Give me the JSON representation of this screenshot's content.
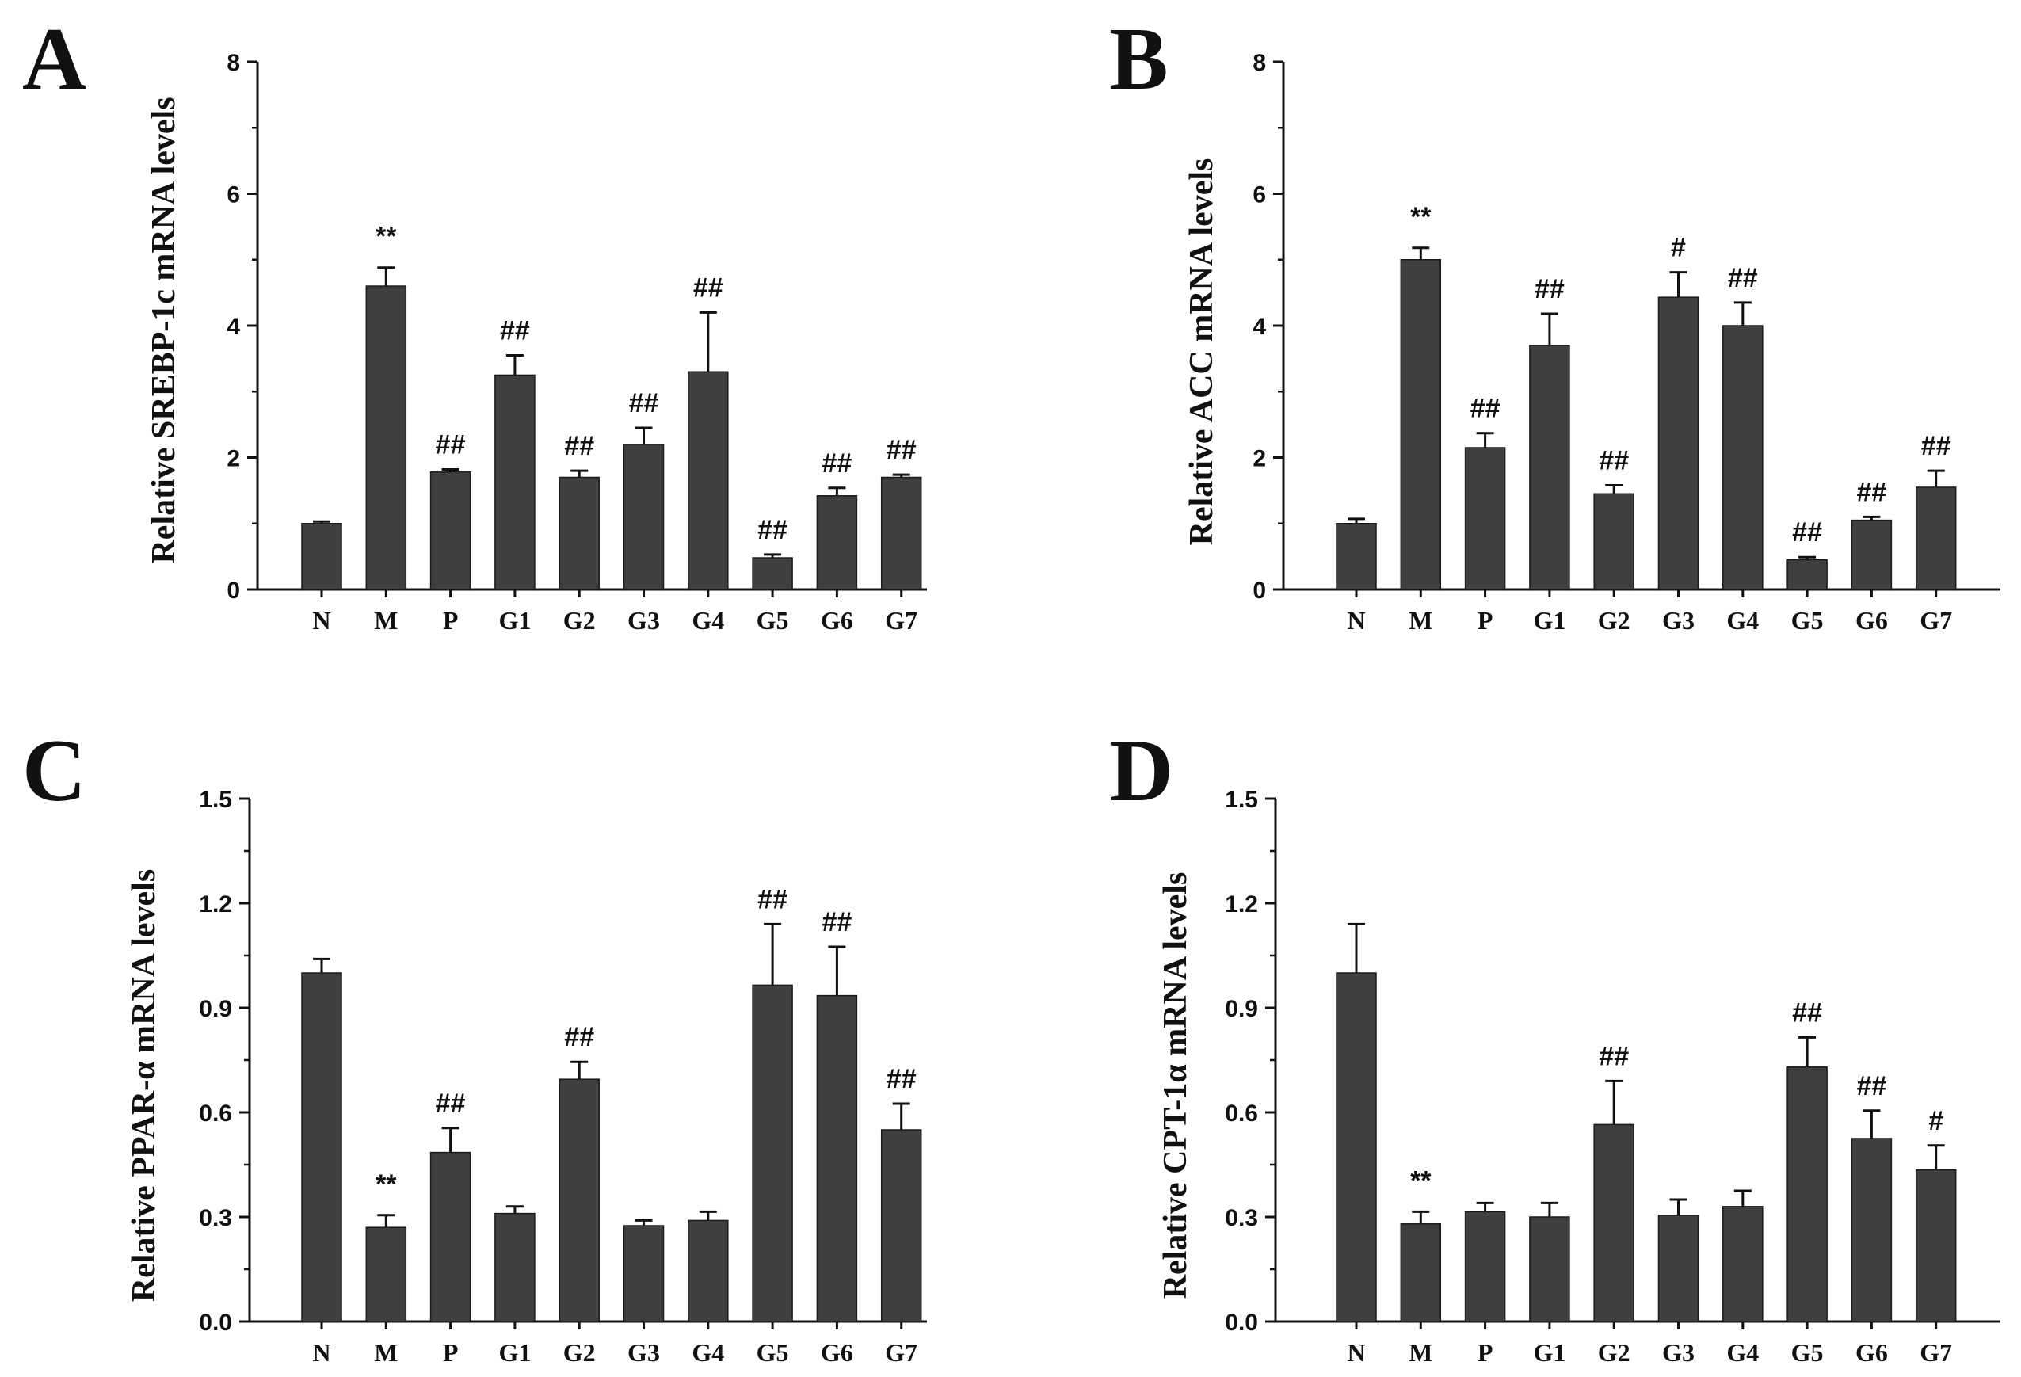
{
  "colors": {
    "bar": "#3f3f3f",
    "axis": "#111111",
    "background": "#ffffff"
  },
  "chart_data": [
    {
      "panel": "A",
      "type": "bar",
      "ylabel": "Relative SREBP-1c mRNA levels",
      "ylim": [
        0,
        8
      ],
      "yticks": [
        "0",
        "2",
        "4",
        "6",
        "8"
      ],
      "categories": [
        "N",
        "M",
        "P",
        "G1",
        "G2",
        "G3",
        "G4",
        "G5",
        "G6",
        "G7"
      ],
      "values": [
        1.0,
        4.6,
        1.78,
        3.25,
        1.7,
        2.2,
        3.3,
        0.48,
        1.42,
        1.7
      ],
      "errors": [
        0.03,
        0.28,
        0.04,
        0.3,
        0.1,
        0.25,
        0.9,
        0.05,
        0.12,
        0.04
      ],
      "annotations": [
        "",
        "**",
        "##",
        "##",
        "##",
        "##",
        "##",
        "##",
        "##",
        "##"
      ]
    },
    {
      "panel": "B",
      "type": "bar",
      "ylabel": "Relative ACC mRNA levels",
      "ylim": [
        0,
        8
      ],
      "yticks": [
        "0",
        "2",
        "4",
        "6",
        "8"
      ],
      "categories": [
        "N",
        "M",
        "P",
        "G1",
        "G2",
        "G3",
        "G4",
        "G5",
        "G6",
        "G7"
      ],
      "values": [
        1.0,
        5.0,
        2.15,
        3.7,
        1.45,
        4.43,
        4.0,
        0.45,
        1.05,
        1.55
      ],
      "errors": [
        0.07,
        0.18,
        0.22,
        0.48,
        0.13,
        0.38,
        0.35,
        0.04,
        0.05,
        0.25
      ],
      "annotations": [
        "",
        "**",
        "##",
        "##",
        "##",
        "#",
        "##",
        "##",
        "##",
        "##"
      ]
    },
    {
      "panel": "C",
      "type": "bar",
      "ylabel": "Relative PPAR-α mRNA levels",
      "ylim": [
        0,
        1.5
      ],
      "yticks": [
        "0.0",
        "0.3",
        "0.6",
        "0.9",
        "1.2",
        "1.5"
      ],
      "categories": [
        "N",
        "M",
        "P",
        "G1",
        "G2",
        "G3",
        "G4",
        "G5",
        "G6",
        "G7"
      ],
      "values": [
        1.0,
        0.27,
        0.485,
        0.31,
        0.695,
        0.275,
        0.29,
        0.965,
        0.935,
        0.55
      ],
      "errors": [
        0.04,
        0.035,
        0.07,
        0.02,
        0.05,
        0.015,
        0.025,
        0.175,
        0.14,
        0.075
      ],
      "annotations": [
        "",
        "**",
        "##",
        "",
        "##",
        "",
        "",
        "##",
        "##",
        "##"
      ]
    },
    {
      "panel": "D",
      "type": "bar",
      "ylabel": "Relative CPT-1α mRNA levels",
      "ylim": [
        0,
        1.5
      ],
      "yticks": [
        "0.0",
        "0.3",
        "0.6",
        "0.9",
        "1.2",
        "1.5"
      ],
      "categories": [
        "N",
        "M",
        "P",
        "G1",
        "G2",
        "G3",
        "G4",
        "G5",
        "G6",
        "G7"
      ],
      "values": [
        1.0,
        0.28,
        0.315,
        0.3,
        0.565,
        0.305,
        0.33,
        0.73,
        0.525,
        0.435
      ],
      "errors": [
        0.14,
        0.035,
        0.025,
        0.04,
        0.125,
        0.045,
        0.045,
        0.085,
        0.08,
        0.07
      ],
      "annotations": [
        "",
        "**",
        "",
        "",
        "##",
        "",
        "",
        "##",
        "##",
        "#"
      ]
    }
  ]
}
